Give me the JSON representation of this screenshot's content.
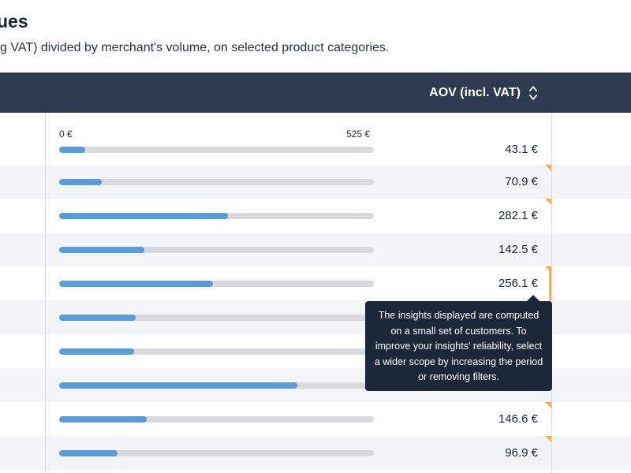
{
  "header": {
    "title": "ues",
    "description": "g VAT) divided by merchant's volume, on selected product categories."
  },
  "table": {
    "aov_column_label": "AOV (incl. VAT)",
    "scale_min_label": "0 €",
    "scale_max_label": "525 €",
    "scale_max": 525,
    "rows": [
      {
        "value": 43.1,
        "value_label": "43.1 €",
        "low_confidence": false
      },
      {
        "value": 70.9,
        "value_label": "70.9 €",
        "low_confidence": true
      },
      {
        "value": 282.1,
        "value_label": "282.1 €",
        "low_confidence": true
      },
      {
        "value": 142.5,
        "value_label": "142.5 €",
        "low_confidence": false
      },
      {
        "value": 256.1,
        "value_label": "256.1 €",
        "low_confidence": true
      },
      {
        "value": 127,
        "value_label": "",
        "low_confidence": false
      },
      {
        "value": 125,
        "value_label": "",
        "low_confidence": false
      },
      {
        "value": 397,
        "value_label": "",
        "low_confidence": false
      },
      {
        "value": 146.6,
        "value_label": "146.6 €",
        "low_confidence": true
      },
      {
        "value": 96.9,
        "value_label": "96.9 €",
        "low_confidence": true
      }
    ]
  },
  "tooltip": {
    "text": "The insights displayed are computed on a small set of customers. To improve your insights' reliability, select a wider scope by increasing the period or removing filters."
  },
  "colors": {
    "header_bg": "#2e3a4f",
    "bar_fill": "#5b9bd8",
    "bar_track": "#d9dadd",
    "warning": "#f1b24a",
    "tooltip_bg": "#1c2738"
  }
}
